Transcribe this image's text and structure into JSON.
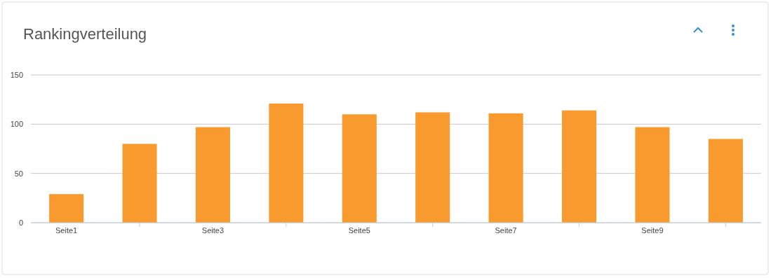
{
  "chart_data": {
    "type": "bar",
    "title": "Rankingverteilung",
    "categories": [
      "Seite1",
      null,
      "Seite3",
      null,
      "Seite5",
      null,
      "Seite7",
      null,
      "Seite9",
      null
    ],
    "values": [
      29,
      80,
      97,
      121,
      110,
      112,
      111,
      114,
      97,
      85
    ],
    "color": "#f99a2e",
    "ylim": [
      0,
      150
    ],
    "yticks": [
      0,
      50,
      100,
      150
    ],
    "grid": "y"
  }
}
